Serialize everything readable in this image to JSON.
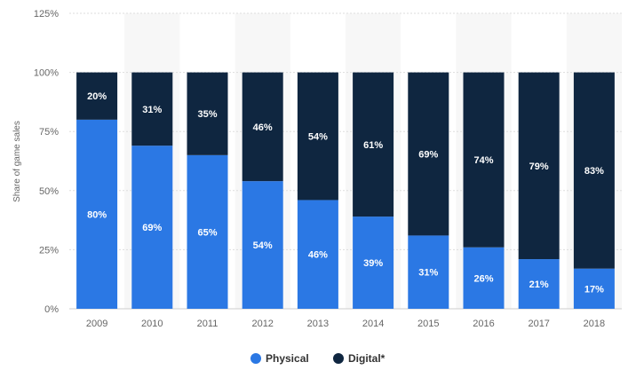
{
  "chart_data": {
    "type": "bar",
    "stacked": true,
    "categories": [
      "2009",
      "2010",
      "2011",
      "2012",
      "2013",
      "2014",
      "2015",
      "2016",
      "2017",
      "2018"
    ],
    "series": [
      {
        "name": "Physical",
        "color": "#2b78e4",
        "values": [
          80,
          69,
          65,
          54,
          46,
          39,
          31,
          26,
          21,
          17
        ]
      },
      {
        "name": "Digital*",
        "color": "#0f2640",
        "values": [
          20,
          31,
          35,
          46,
          54,
          61,
          69,
          74,
          79,
          83
        ]
      }
    ],
    "ylabel": "Share of game sales",
    "ylim": [
      0,
      125
    ],
    "yticks": [
      "0%",
      "25%",
      "50%",
      "75%",
      "100%",
      "125%"
    ],
    "ytick_values": [
      0,
      25,
      50,
      75,
      100,
      125
    ],
    "value_suffix": "%",
    "grid": true,
    "legend_position": "bottom-center"
  }
}
